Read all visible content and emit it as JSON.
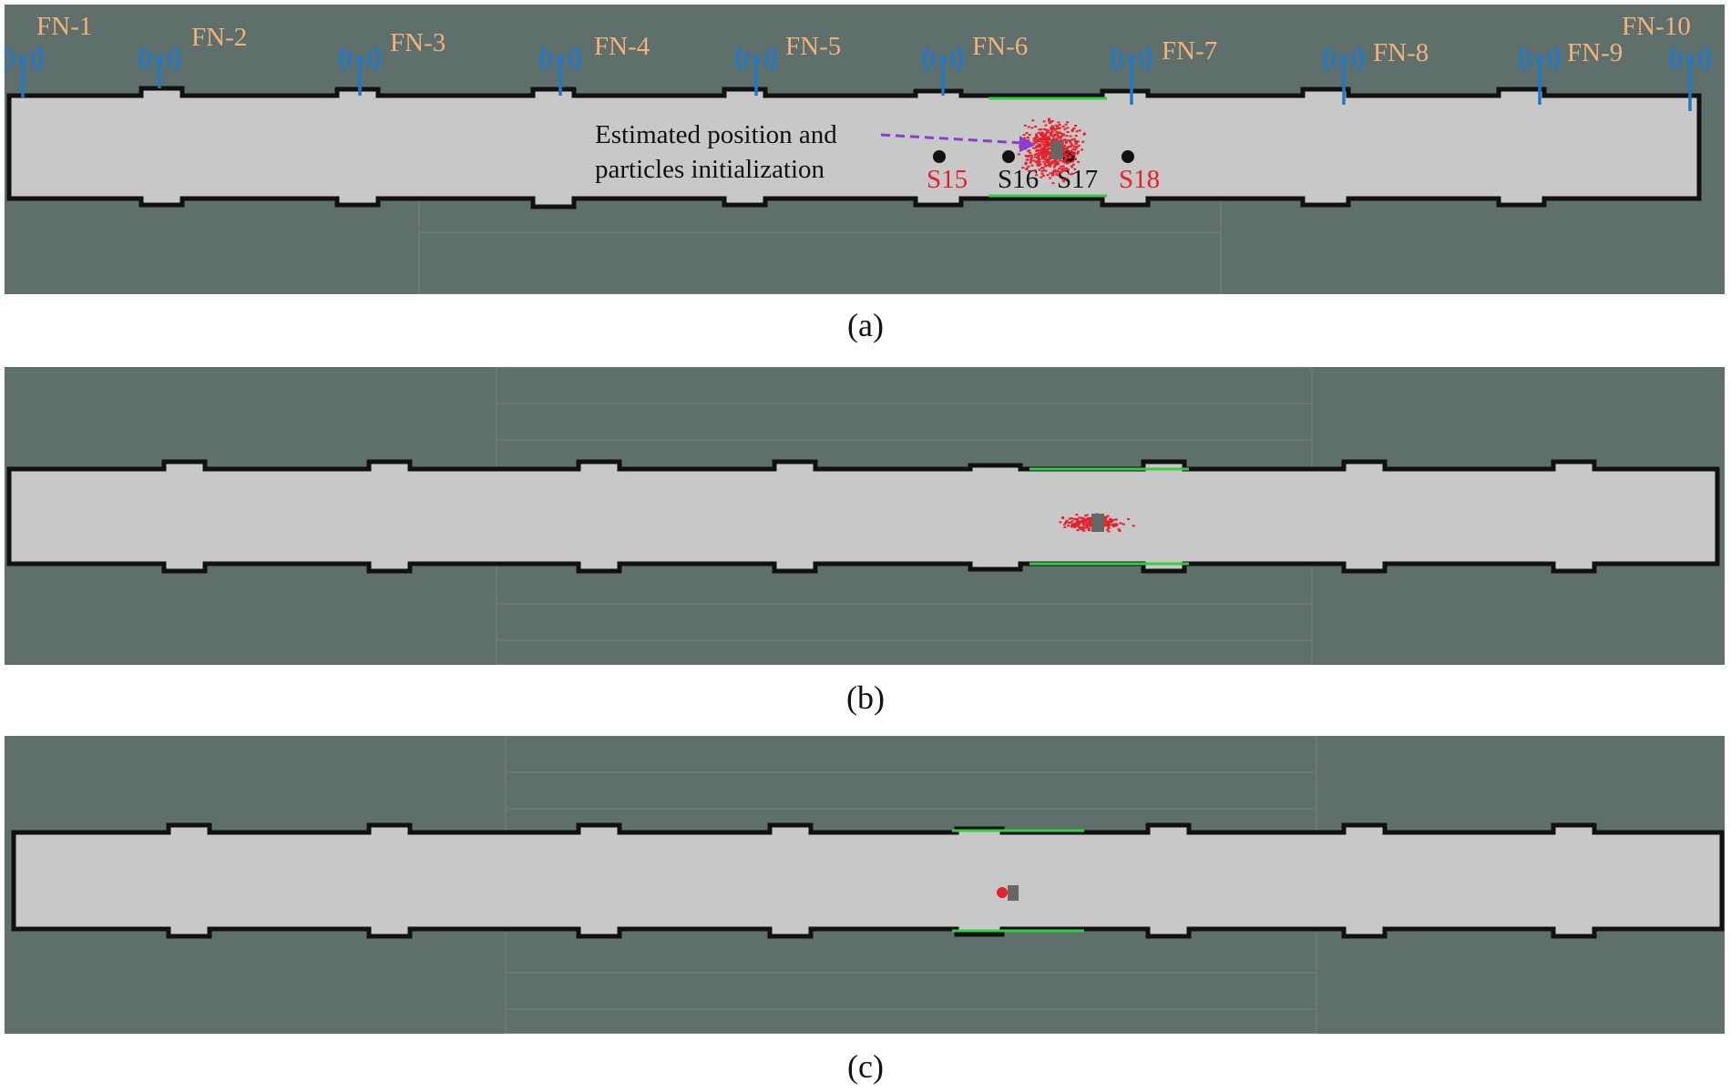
{
  "panels": [
    {
      "caption": "(a)",
      "fog_nodes": [
        "FN-1",
        "FN-2",
        "FN-3",
        "FN-4",
        "FN-5",
        "FN-6",
        "FN-7",
        "FN-8",
        "FN-9",
        "FN-10"
      ],
      "stations": [
        {
          "label": "S15",
          "color": "#e8202a"
        },
        {
          "label": "S16",
          "color": "#111111"
        },
        {
          "label": "S17",
          "color": "#111111"
        },
        {
          "label": "S18",
          "color": "#e8202a"
        }
      ],
      "annotation": [
        "Estimated position and",
        "particles initialization"
      ],
      "particle_state": "initialization (wide spread)"
    },
    {
      "caption": "(b)",
      "particle_state": "converging"
    },
    {
      "caption": "(c)",
      "particle_state": "converged"
    }
  ],
  "colors": {
    "background": "#5f6f6c",
    "corridor": "#c8c8c8",
    "wall": "#111111",
    "particle": "#e8202a",
    "fog_node_icon": "#1f78c8",
    "fog_node_label": "#f2b27a",
    "scan_green": "#33cc44",
    "arrow": "#8a3fd0"
  }
}
